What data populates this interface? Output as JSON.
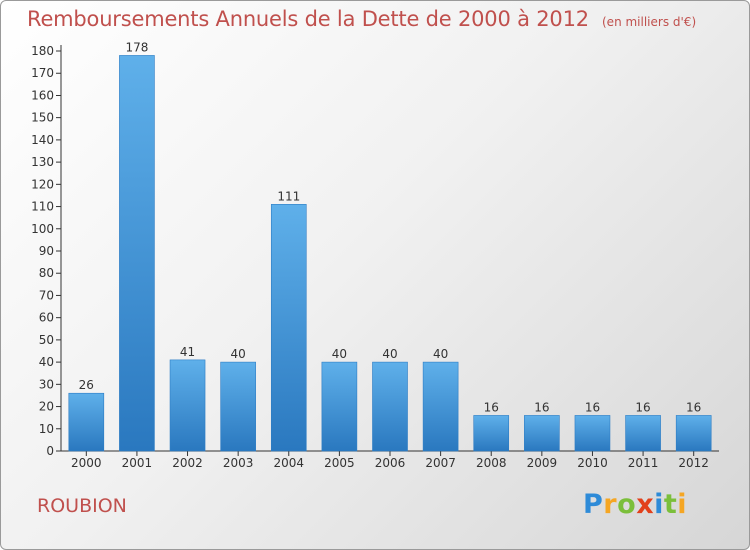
{
  "header": {
    "title": "Remboursements Annuels de la Dette de 2000 à 2012",
    "subtitle": "(en milliers d'€)"
  },
  "footer": {
    "commune": "ROUBION",
    "brand": [
      "P",
      "r",
      "o",
      "x",
      "i",
      "t",
      "i"
    ]
  },
  "chart_data": {
    "type": "bar",
    "title": "Remboursements Annuels de la Dette de 2000 à 2012",
    "subtitle": "(en milliers d'€)",
    "categories": [
      "2000",
      "2001",
      "2002",
      "2003",
      "2004",
      "2005",
      "2006",
      "2007",
      "2008",
      "2009",
      "2010",
      "2011",
      "2012"
    ],
    "values": [
      26,
      178,
      41,
      40,
      111,
      40,
      40,
      40,
      16,
      16,
      16,
      16,
      16
    ],
    "ylim": [
      0,
      180
    ],
    "yticks": [
      0,
      10,
      20,
      30,
      40,
      50,
      60,
      70,
      80,
      90,
      100,
      110,
      120,
      130,
      140,
      150,
      160,
      170,
      180
    ],
    "grid": false,
    "colors": {
      "bar": "#3f97dc",
      "bar_light": "#5fb0ea",
      "bar_dark": "#2a78bf",
      "title": "#c0504d"
    }
  }
}
